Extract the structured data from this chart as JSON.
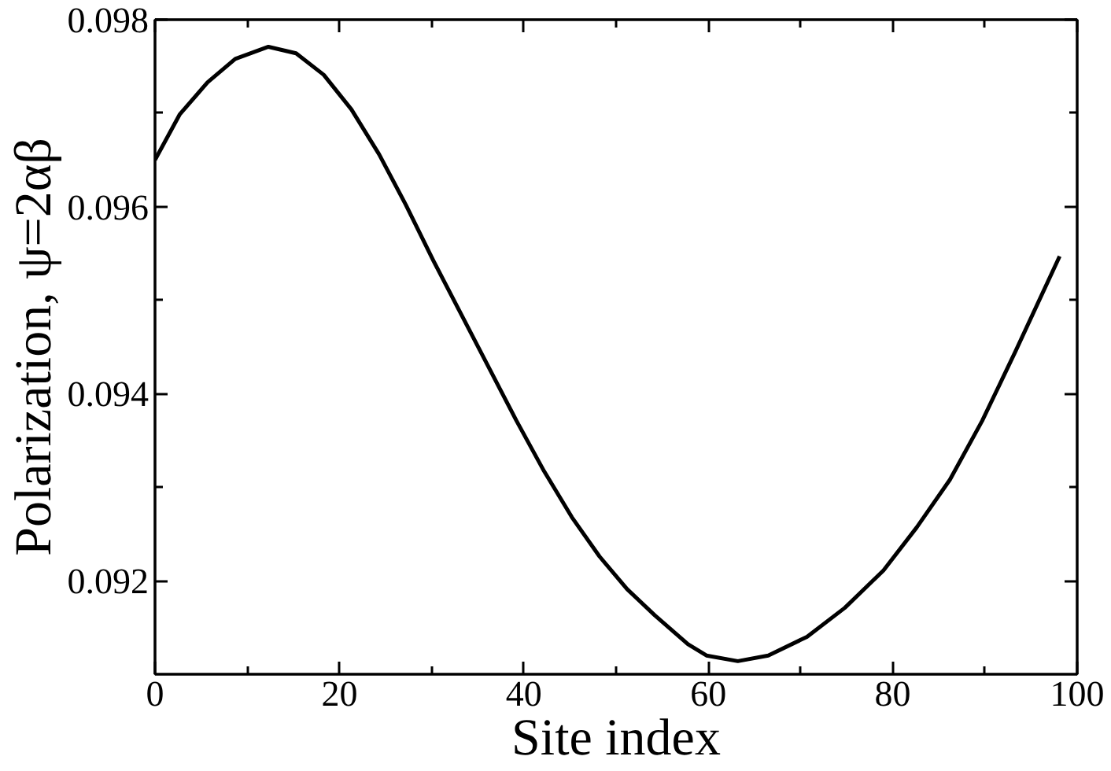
{
  "chart_data": {
    "type": "line",
    "xlabel": "Site index",
    "ylabel": "Polarization, ψ=2αβ",
    "xlim": [
      0,
      100
    ],
    "ylim": [
      0.091,
      0.098
    ],
    "xticks": [
      0,
      {
        "value": 10,
        "label": null
      },
      20,
      {
        "value": 30,
        "label": null
      },
      40,
      {
        "value": 50,
        "label": null
      },
      60,
      {
        "value": 70,
        "label": null
      },
      80,
      {
        "value": 90,
        "label": null
      },
      100
    ],
    "yticks": [
      0.092,
      {
        "value": 0.093,
        "label": null
      },
      0.094,
      {
        "value": 0.095,
        "label": null
      },
      0.096,
      {
        "value": 0.097,
        "label": null
      },
      0.098
    ],
    "series": [
      {
        "color": "#000000",
        "x": [
          0,
          2.7,
          5.7,
          8.7,
          12.3,
          15.3,
          18.3,
          21.3,
          24.3,
          27.2,
          30.2,
          33.2,
          36.2,
          39.2,
          42.2,
          45.2,
          48.2,
          51.2,
          54.2,
          57.8,
          59.8,
          63.2,
          66.5,
          70.7,
          74.8,
          79.0,
          82.6,
          86.2,
          89.7,
          93.3,
          98.1
        ],
        "values": [
          0.0965,
          0.09699,
          0.09733,
          0.09758,
          0.09771,
          0.09764,
          0.09741,
          0.09704,
          0.09656,
          0.09602,
          0.09542,
          0.09485,
          0.09428,
          0.09371,
          0.09317,
          0.09268,
          0.09226,
          0.09191,
          0.09163,
          0.09132,
          0.0912,
          0.09114,
          0.0912,
          0.0914,
          0.09171,
          0.09211,
          0.09257,
          0.09308,
          0.09371,
          0.09445,
          0.09547
        ]
      }
    ]
  }
}
